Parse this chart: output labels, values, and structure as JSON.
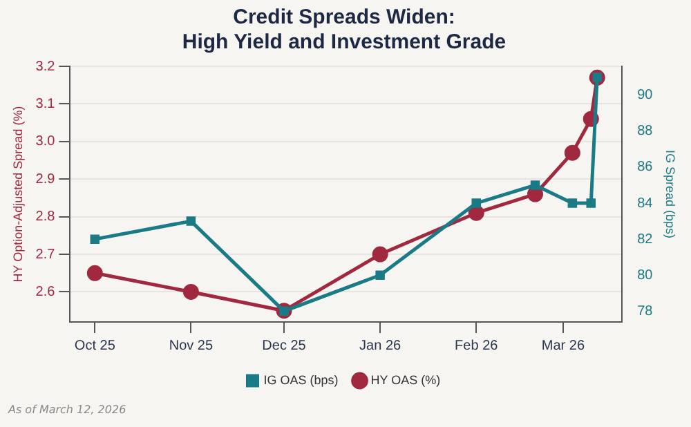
{
  "chart_data": {
    "type": "line",
    "title": "Credit Spreads Widen:\nHigh Yield and Investment Grade",
    "ylabel": "HY Option-Adjusted Spread (%)",
    "y2label": "IG Spread (bps)",
    "x": [
      "2025-10-01",
      "2025-11-01",
      "2025-12-01",
      "2026-01-01",
      "2026-02-01",
      "2026-02-20",
      "2026-03-04",
      "2026-03-10",
      "2026-03-12"
    ],
    "series": [
      {
        "name": "HY OAS (%)",
        "color": "#a0293f",
        "marker": "circle",
        "values": [
          2.65,
          2.6,
          2.55,
          2.7,
          2.81,
          2.86,
          2.97,
          3.06,
          3.17
        ]
      },
      {
        "name": "IG OAS (bps)",
        "color": "#1a7a85",
        "marker": "square",
        "axis": "y2",
        "values": [
          82,
          83,
          78,
          80,
          84,
          85,
          84,
          84,
          91
        ]
      }
    ],
    "xlim": [
      "2025-09-23",
      "2026-03-20"
    ],
    "xticks": [
      {
        "value": "2025-10-01",
        "label": "Oct 25"
      },
      {
        "value": "2025-11-01",
        "label": "Nov 25"
      },
      {
        "value": "2025-12-01",
        "label": "Dec 25"
      },
      {
        "value": "2026-01-01",
        "label": "Jan 26"
      },
      {
        "value": "2026-02-01",
        "label": "Feb 26"
      },
      {
        "value": "2026-03-01",
        "label": "Mar 26"
      }
    ],
    "ylim": [
      2.52,
      3.2
    ],
    "yticks": [
      2.6,
      2.7,
      2.8,
      2.9,
      {
        "value": 3.0,
        "label": "3.0"
      },
      3.1,
      3.2
    ],
    "y2lim": [
      77.4,
      91.6
    ],
    "y2ticks": [
      78,
      80,
      82,
      84,
      86,
      88,
      90
    ],
    "grid": "y",
    "legend": "bottom",
    "line_style": "solid",
    "annotations": [
      "As of March 12, 2026"
    ]
  }
}
